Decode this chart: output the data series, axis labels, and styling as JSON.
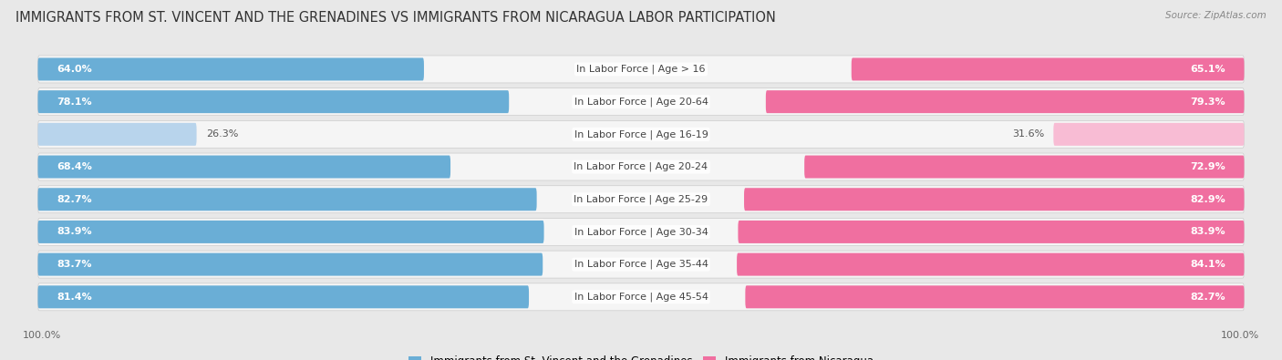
{
  "title": "IMMIGRANTS FROM ST. VINCENT AND THE GRENADINES VS IMMIGRANTS FROM NICARAGUA LABOR PARTICIPATION",
  "source": "Source: ZipAtlas.com",
  "categories": [
    "In Labor Force | Age > 16",
    "In Labor Force | Age 20-64",
    "In Labor Force | Age 16-19",
    "In Labor Force | Age 20-24",
    "In Labor Force | Age 25-29",
    "In Labor Force | Age 30-34",
    "In Labor Force | Age 35-44",
    "In Labor Force | Age 45-54"
  ],
  "left_values": [
    64.0,
    78.1,
    26.3,
    68.4,
    82.7,
    83.9,
    83.7,
    81.4
  ],
  "right_values": [
    65.1,
    79.3,
    31.6,
    72.9,
    82.9,
    83.9,
    84.1,
    82.7
  ],
  "left_color": "#6aaed6",
  "right_color": "#f06fa0",
  "left_color_light": "#b8d4ec",
  "right_color_light": "#f8bcd4",
  "left_label": "Immigrants from St. Vincent and the Grenadines",
  "right_label": "Immigrants from Nicaragua",
  "bg_color": "#e8e8e8",
  "row_bg_light": "#f5f5f5",
  "row_bg_white": "#ffffff",
  "title_fontsize": 10.5,
  "label_fontsize": 8,
  "value_fontsize": 8,
  "legend_fontsize": 8.5,
  "axis_label_fontsize": 8,
  "max_val": 100.0,
  "threshold": 50
}
